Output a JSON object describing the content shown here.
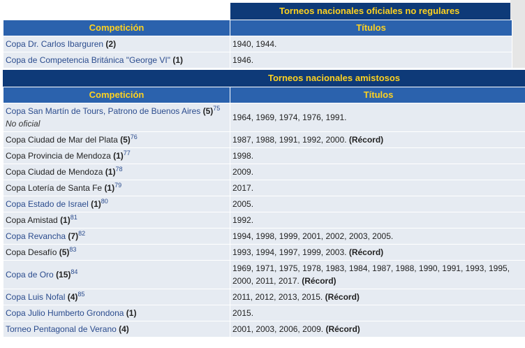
{
  "tables": [
    {
      "title": "Torneos nacionales oficiales no regulares",
      "headers": [
        "Competición",
        "Títulos"
      ],
      "rows": [
        {
          "name": "Copa Dr. Carlos Ibarguren",
          "count": "(2)",
          "linked": true,
          "titles": "1940, 1944."
        },
        {
          "name": "Copa de Competencia Británica \"George VI\"",
          "count": "(1)",
          "linked": true,
          "titles": "1946."
        }
      ]
    },
    {
      "title": "Torneos nacionales amistosos",
      "headers": [
        "Competición",
        "Títulos"
      ],
      "rows": [
        {
          "name": "Copa San Martín de Tours, Patrono de Buenos Aires",
          "count": "(5)",
          "ref": "75",
          "note": "No oficial",
          "linked": true,
          "titles": "1964, 1969, 1974, 1976, 1991."
        },
        {
          "name": "Copa Ciudad de Mar del Plata",
          "count": "(5)",
          "ref": "76",
          "linked": false,
          "titles": "1987, 1988, 1991, 1992, 2000.",
          "record": "(Récord)"
        },
        {
          "name": "Copa Provincia de Mendoza",
          "count": "(1)",
          "ref": "77",
          "linked": false,
          "titles": "1998."
        },
        {
          "name": "Copa Ciudad de Mendoza",
          "count": "(1)",
          "ref": "78",
          "linked": false,
          "titles": "2009."
        },
        {
          "name": "Copa Lotería de Santa Fe",
          "count": "(1)",
          "ref": "79",
          "linked": false,
          "titles": "2017."
        },
        {
          "name": "Copa Estado de Israel",
          "count": "(1)",
          "ref": "80",
          "linked": true,
          "titles": "2005."
        },
        {
          "name": "Copa Amistad",
          "count": "(1)",
          "ref": "81",
          "linked": false,
          "titles": "1992."
        },
        {
          "name": "Copa Revancha",
          "count": "(7)",
          "ref": "82",
          "linked": true,
          "titles": "1994, 1998, 1999, 2001, 2002, 2003, 2005."
        },
        {
          "name": "Copa Desafío",
          "count": "(5)",
          "ref": "83",
          "linked": false,
          "titles": "1993, 1994, 1997, 1999, 2003.",
          "record": "(Récord)"
        },
        {
          "name": "Copa de Oro",
          "count": "(15)",
          "ref": "84",
          "linked": true,
          "titles": "1969, 1971, 1975, 1978, 1983, 1984, 1987, 1988, 1990, 1991, 1993, 1995, 2000, 2011, 2017.",
          "record": "(Récord)"
        },
        {
          "name": "Copa Luis Nofal",
          "count": "(4)",
          "ref": "85",
          "linked": true,
          "titles": "2011, 2012, 2013, 2015.",
          "record": "(Récord)"
        },
        {
          "name": "Copa Julio Humberto Grondona",
          "count": "(1)",
          "linked": true,
          "titles": "2015."
        },
        {
          "name": "Torneo Pentagonal de Verano",
          "count": "(4)",
          "linked": true,
          "titles": "2001, 2003, 2006, 2009.",
          "record": "(Récord)"
        }
      ]
    }
  ]
}
